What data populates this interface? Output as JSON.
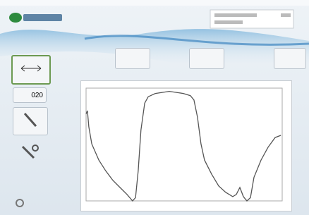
{
  "toolbar": {
    "counter": "020"
  },
  "plot": {
    "x": [
      0,
      0.7,
      1.4,
      2.9,
      6.5,
      10,
      13.7,
      17.3,
      20.9,
      23.7,
      25.2,
      26.6,
      28,
      29.9,
      31.7,
      35.3,
      42.4,
      49.6,
      53.2,
      55,
      56.8,
      58.6,
      60.4,
      64,
      67.6,
      71.2,
      74.8,
      76.6,
      78.4,
      80.2,
      82,
      83.8,
      85.6,
      89.2,
      92.8,
      96.4,
      99.3
    ],
    "y": [
      81,
      84,
      69,
      53,
      38,
      28,
      19,
      12.5,
      6,
      0,
      3,
      28,
      66,
      91,
      97,
      100,
      102,
      100,
      98,
      94,
      78,
      53,
      38,
      25,
      14,
      8,
      4,
      6,
      12.5,
      4,
      0,
      3,
      22,
      38,
      50,
      59,
      61
    ],
    "xlim": [
      0,
      100
    ],
    "ylim": [
      0,
      105
    ],
    "color": "#555555"
  }
}
